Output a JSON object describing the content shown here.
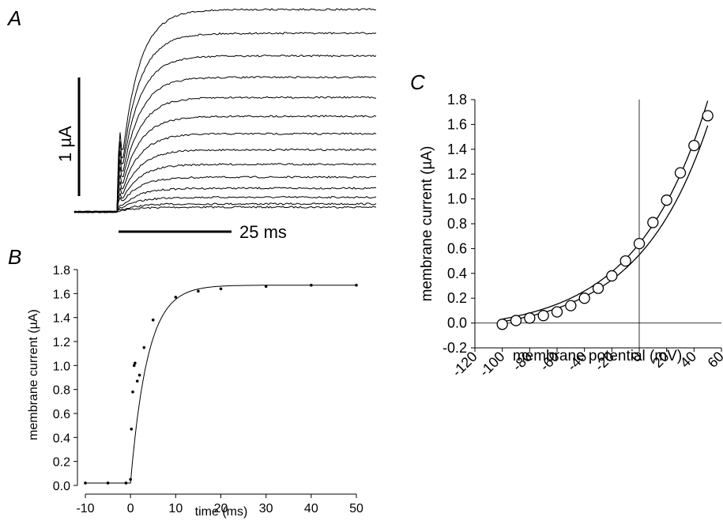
{
  "panels": {
    "a": "A",
    "b": "B",
    "c": "C"
  },
  "chart_data": [
    {
      "panel": "A",
      "type": "line",
      "scale_bars": {
        "current": "1 µA",
        "time": "25 ms"
      },
      "series_count": 14
    },
    {
      "panel": "B",
      "type": "scatter",
      "xlabel": "time (ms)",
      "ylabel": "membrane current (µA)",
      "xlim": [
        -10,
        50
      ],
      "ylim": [
        0.0,
        1.8
      ],
      "xticks": [
        -10,
        0,
        10,
        20,
        30,
        40,
        50
      ],
      "yticks": [
        0.0,
        0.2,
        0.4,
        0.6,
        0.8,
        1.0,
        1.2,
        1.4,
        1.6,
        1.8
      ],
      "grid": false,
      "x": [
        -10,
        -5,
        -1,
        0,
        0.2,
        0.5,
        0.8,
        1.0,
        1.5,
        2.0,
        3.0,
        5.0,
        10,
        15,
        20,
        30,
        40,
        50
      ],
      "y": [
        0.02,
        0.02,
        0.02,
        0.05,
        0.47,
        0.78,
        1.0,
        1.02,
        0.87,
        0.92,
        1.15,
        1.38,
        1.57,
        1.62,
        1.64,
        1.66,
        1.67,
        1.67
      ]
    },
    {
      "panel": "C",
      "type": "scatter",
      "xlabel": "membrane potential (mV)",
      "ylabel": "membrane current (µA)",
      "xlim": [
        -120,
        60
      ],
      "ylim": [
        -0.2,
        1.8
      ],
      "xticks": [
        -120,
        -100,
        -80,
        -60,
        -40,
        -20,
        0,
        20,
        40,
        60
      ],
      "xtick_labels": [
        "-120",
        "-100",
        "-80",
        "-60",
        "-40",
        "-20",
        "0",
        "20",
        "40",
        "60"
      ],
      "yticks": [
        -0.2,
        0.0,
        0.2,
        0.4,
        0.6,
        0.8,
        1.0,
        1.2,
        1.4,
        1.6,
        1.8
      ],
      "grid": false,
      "x": [
        -100,
        -90,
        -80,
        -70,
        -60,
        -50,
        -40,
        -30,
        -20,
        -10,
        0,
        10,
        20,
        30,
        40,
        50
      ],
      "y": [
        -0.01,
        0.02,
        0.04,
        0.06,
        0.09,
        0.14,
        0.2,
        0.28,
        0.38,
        0.5,
        0.64,
        0.81,
        0.99,
        1.21,
        1.43,
        1.67
      ]
    }
  ]
}
